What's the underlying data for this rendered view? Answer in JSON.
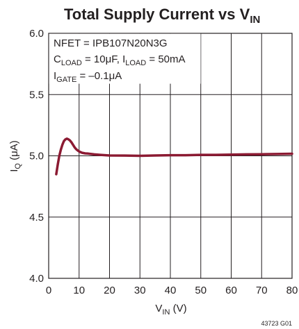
{
  "chart_data": {
    "type": "line",
    "title": {
      "main": "Total Supply Current vs V",
      "sub": "IN"
    },
    "xlabel": {
      "main": "V",
      "sub": "IN",
      "unit": " (V)"
    },
    "ylabel": "I_Q (μA)",
    "ylabel_parts": {
      "main": "I",
      "sub": "Q",
      "unit": " (μA)"
    },
    "xlim": [
      0,
      80
    ],
    "ylim": [
      4.0,
      6.0
    ],
    "x_ticks": [
      "0",
      "10",
      "20",
      "30",
      "40",
      "50",
      "60",
      "70",
      "80"
    ],
    "y_ticks": [
      "4.0",
      "4.5",
      "5.0",
      "5.5",
      "6.0"
    ],
    "grid": true,
    "annotations": {
      "line1": "NFET = IPB107N20N3G",
      "line2": [
        {
          "text": "C",
          "sub": false
        },
        {
          "text": "LOAD",
          "sub": true
        },
        {
          "text": " = 10μF, I",
          "sub": false
        },
        {
          "text": "LOAD",
          "sub": true
        },
        {
          "text": " = 50mA",
          "sub": false
        }
      ],
      "line3": [
        {
          "text": "I",
          "sub": false
        },
        {
          "text": "GATE",
          "sub": true
        },
        {
          "text": " = –0.1μA",
          "sub": false
        }
      ]
    },
    "figure_id": "43723 G01",
    "series_color": "#8b1a32",
    "series": [
      {
        "x": [
          2.5,
          3,
          3.5,
          4,
          4.5,
          5,
          5.5,
          6,
          6.5,
          7,
          7.5,
          8,
          8.5,
          9,
          9.5,
          10,
          11,
          12,
          13,
          14,
          15,
          17,
          20,
          25,
          30,
          35,
          40,
          45,
          50,
          55,
          60,
          65,
          70,
          75,
          80
        ],
        "y": [
          4.85,
          4.93,
          5.0,
          5.05,
          5.09,
          5.12,
          5.135,
          5.14,
          5.135,
          5.125,
          5.11,
          5.09,
          5.07,
          5.055,
          5.045,
          5.035,
          5.025,
          5.02,
          5.018,
          5.015,
          5.012,
          5.008,
          5.003,
          5.002,
          5.0,
          5.003,
          5.005,
          5.005,
          5.008,
          5.008,
          5.01,
          5.012,
          5.013,
          5.015,
          5.017
        ]
      }
    ]
  }
}
